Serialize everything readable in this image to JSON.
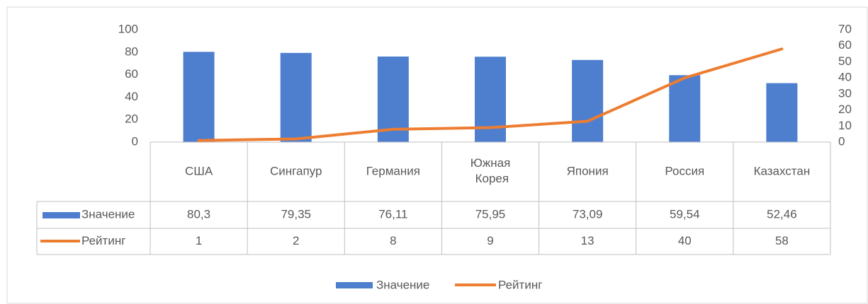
{
  "chart_data": {
    "type": "bar_line_table",
    "categories": [
      "США",
      "Сингапур",
      "Германия",
      "Южная Корея",
      "Япония",
      "Россия",
      "Казахстан"
    ],
    "series": [
      {
        "name": "Значение",
        "type": "bar",
        "color": "#4e7fcf",
        "values": [
          80.3,
          79.35,
          76.11,
          75.95,
          73.09,
          59.54,
          52.46
        ],
        "value_labels": [
          "80,3",
          "79,35",
          "76,11",
          "75,95",
          "73,09",
          "59,54",
          "52,46"
        ]
      },
      {
        "name": "Рейтинг",
        "type": "line",
        "axis": "y2",
        "color": "#ed7d31",
        "values": [
          1,
          2,
          8,
          9,
          13,
          40,
          58
        ]
      }
    ],
    "ylim": [
      0,
      100
    ],
    "yticks": [
      0,
      20,
      40,
      60,
      80,
      100
    ],
    "y2lim": [
      0,
      70
    ],
    "y2ticks": [
      0,
      10,
      20,
      30,
      40,
      50,
      60,
      70
    ],
    "legend": "bottom",
    "data_table": true
  }
}
